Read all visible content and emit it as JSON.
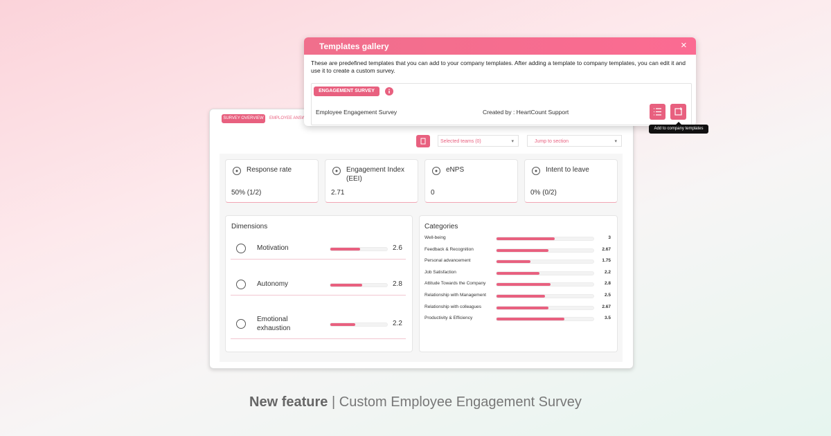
{
  "modal": {
    "title": "Templates gallery",
    "close": "×",
    "description": "These are predefined templates that you can add to your company templates. After adding a template to company templates, you can edit it and use it to create a custom survey.",
    "tag": "ENGAGEMENT SURVEY",
    "template_name": "Employee Engagement Survey",
    "created_by": "Created by : HeartCount Support",
    "tooltip": "Add to company templates"
  },
  "tabs": [
    "SURVEY OVERVIEW",
    "EMPLOYEE ANSW"
  ],
  "filters": {
    "teams": "Selected teams (0)",
    "jump": "Jump to section"
  },
  "kpis": [
    {
      "label": "Response rate",
      "value": "50% (1/2)"
    },
    {
      "label": "Engagement Index (EEI)",
      "value": 2.71
    },
    {
      "label": "eNPS",
      "value": 0
    },
    {
      "label": "Intent to leave",
      "value": "0% (0/2)"
    }
  ],
  "dimensions": {
    "title": "Dimensions",
    "items": [
      {
        "label": "Motivation",
        "value": 2.6
      },
      {
        "label": "Autonomy",
        "value": 2.8
      },
      {
        "label": "Emotional exhaustion",
        "value": 2.2
      }
    ]
  },
  "categories": {
    "title": "Categories",
    "items": [
      {
        "label": "Well-being",
        "value": 3
      },
      {
        "label": "Feedback & Recognition",
        "value": 2.67
      },
      {
        "label": "Personal advancement",
        "value": 1.75
      },
      {
        "label": "Job Satisfaction",
        "value": 2.2
      },
      {
        "label": "Attitude Towards the Company",
        "value": 2.8
      },
      {
        "label": "Relationship with Management",
        "value": 2.5
      },
      {
        "label": "Relationship with colleagues",
        "value": 2.67
      },
      {
        "label": "Productivity & Efficiency",
        "value": 3.5
      }
    ]
  },
  "footer": {
    "bold": "New feature",
    "separator": "|",
    "text": "Custom Employee Engagement Survey"
  }
}
